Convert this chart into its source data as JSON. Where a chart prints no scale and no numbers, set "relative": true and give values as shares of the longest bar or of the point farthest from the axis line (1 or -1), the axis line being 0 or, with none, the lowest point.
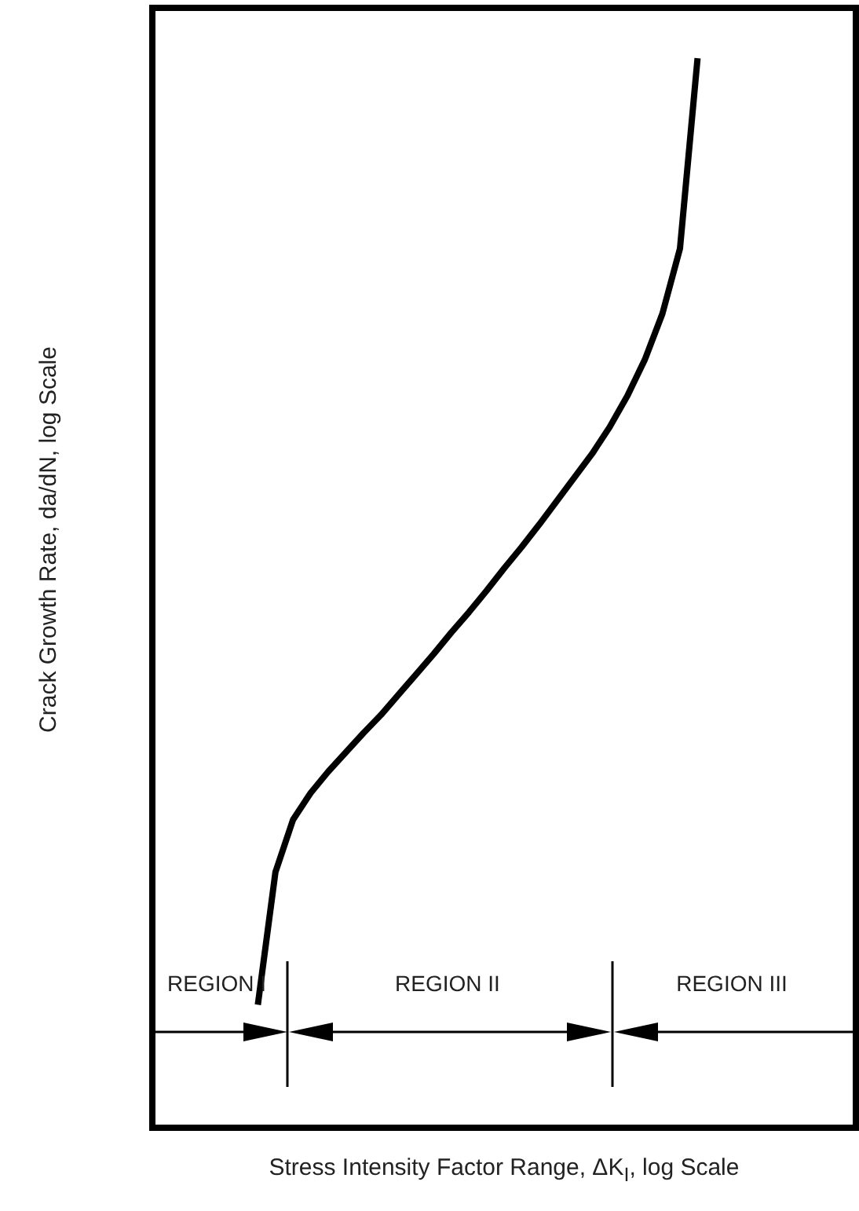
{
  "chart_data": {
    "type": "line",
    "xlabel": "Stress Intensity Factor Range, ΔK$_{I}$, log Scale",
    "ylabel": "Crack Growth Rate, da/dN, log Scale",
    "categories": [
      null,
      null,
      null,
      null,
      null,
      null,
      null,
      null,
      null,
      null,
      null,
      null,
      null,
      null,
      null,
      null,
      null,
      null,
      null,
      null,
      null,
      null,
      null,
      null,
      null,
      null,
      null,
      null,
      null,
      null,
      null,
      null,
      null,
      null,
      null,
      null,
      null,
      null,
      null,
      null,
      null
    ],
    "series": [
      {
        "color": "#000000",
        "values": [
          null,
          null,
          null,
          null,
          null,
          null,
          0.115,
          0.239,
          0.288,
          0.313,
          0.333,
          0.351,
          0.369,
          0.386,
          0.405,
          0.424,
          0.443,
          0.463,
          0.482,
          0.502,
          0.523,
          0.543,
          0.564,
          0.586,
          0.608,
          0.63,
          0.655,
          0.684,
          0.718,
          0.761,
          0.822,
          1,
          null,
          null,
          null,
          null,
          null,
          null,
          null,
          null,
          null
        ]
      }
    ],
    "relative": true,
    "marker": "none",
    "grid": false,
    "legend": false,
    "annotations": [
      "REGION I",
      "REGION II",
      "REGION III"
    ]
  }
}
